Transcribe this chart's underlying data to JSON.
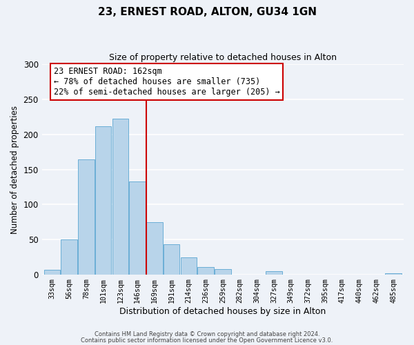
{
  "title": "23, ERNEST ROAD, ALTON, GU34 1GN",
  "subtitle": "Size of property relative to detached houses in Alton",
  "xlabel": "Distribution of detached houses by size in Alton",
  "ylabel": "Number of detached properties",
  "bar_labels": [
    "33sqm",
    "56sqm",
    "78sqm",
    "101sqm",
    "123sqm",
    "146sqm",
    "169sqm",
    "191sqm",
    "214sqm",
    "236sqm",
    "259sqm",
    "282sqm",
    "304sqm",
    "327sqm",
    "349sqm",
    "372sqm",
    "395sqm",
    "417sqm",
    "440sqm",
    "462sqm",
    "485sqm"
  ],
  "bar_values": [
    7,
    50,
    164,
    212,
    222,
    133,
    75,
    43,
    25,
    11,
    8,
    0,
    0,
    5,
    0,
    0,
    0,
    0,
    0,
    0,
    2
  ],
  "bar_color": "#b8d4ea",
  "bar_edge_color": "#6aaed6",
  "vline_x": 5.5,
  "vline_color": "#cc0000",
  "annotation_title": "23 ERNEST ROAD: 162sqm",
  "annotation_line1": "← 78% of detached houses are smaller (735)",
  "annotation_line2": "22% of semi-detached houses are larger (205) →",
  "annotation_box_color": "#ffffff",
  "annotation_box_edge": "#cc0000",
  "ylim": [
    0,
    300
  ],
  "yticks": [
    0,
    50,
    100,
    150,
    200,
    250,
    300
  ],
  "footer1": "Contains HM Land Registry data © Crown copyright and database right 2024.",
  "footer2": "Contains public sector information licensed under the Open Government Licence v3.0.",
  "background_color": "#eef2f8",
  "grid_color": "#ffffff"
}
